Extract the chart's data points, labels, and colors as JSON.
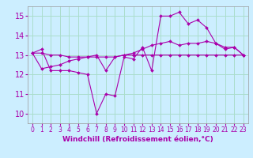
{
  "background_color": "#cceeff",
  "grid_color": "#aaddcc",
  "line_color": "#aa00aa",
  "xlabel": "Windchill (Refroidissement éolien,°C)",
  "xlabel_fontsize": 6.5,
  "xlabel_color": "#aa00aa",
  "ytick_fontsize": 7,
  "xtick_fontsize": 5.5,
  "yticks": [
    10,
    11,
    12,
    13,
    14,
    15
  ],
  "xticks": [
    0,
    1,
    2,
    3,
    4,
    5,
    6,
    7,
    8,
    9,
    10,
    11,
    12,
    13,
    14,
    15,
    16,
    17,
    18,
    19,
    20,
    21,
    22,
    23
  ],
  "xlim": [
    -0.5,
    23.5
  ],
  "ylim": [
    9.5,
    15.5
  ],
  "series": [
    {
      "x": [
        0,
        1,
        2,
        3,
        4,
        5,
        6,
        7,
        8,
        9,
        10,
        11,
        12,
        13,
        14,
        15,
        16,
        17,
        18,
        19,
        20,
        21,
        22,
        23
      ],
      "y": [
        13.1,
        13.3,
        12.2,
        12.2,
        12.2,
        12.1,
        12.0,
        10.0,
        11.0,
        10.9,
        12.9,
        12.8,
        13.4,
        12.2,
        15.0,
        15.0,
        15.2,
        14.6,
        14.8,
        14.4,
        13.6,
        13.3,
        13.4,
        13.0
      ]
    },
    {
      "x": [
        0,
        1,
        2,
        3,
        4,
        5,
        6,
        7,
        8,
        9,
        10,
        11,
        12,
        13,
        14,
        15,
        16,
        17,
        18,
        19,
        20,
        21,
        22,
        23
      ],
      "y": [
        13.1,
        13.1,
        13.0,
        13.0,
        12.9,
        12.9,
        12.9,
        12.9,
        12.9,
        12.9,
        13.0,
        13.0,
        13.0,
        13.0,
        13.0,
        13.0,
        13.0,
        13.0,
        13.0,
        13.0,
        13.0,
        13.0,
        13.0,
        13.0
      ]
    },
    {
      "x": [
        0,
        1,
        2,
        3,
        4,
        5,
        6,
        7,
        8,
        9,
        10,
        11,
        12,
        13,
        14,
        15,
        16,
        17,
        18,
        19,
        20,
        21,
        22,
        23
      ],
      "y": [
        13.1,
        12.3,
        12.4,
        12.5,
        12.7,
        12.8,
        12.9,
        13.0,
        12.2,
        12.9,
        13.0,
        13.1,
        13.3,
        13.5,
        13.6,
        13.7,
        13.5,
        13.6,
        13.6,
        13.7,
        13.6,
        13.4,
        13.4,
        13.0
      ]
    }
  ]
}
